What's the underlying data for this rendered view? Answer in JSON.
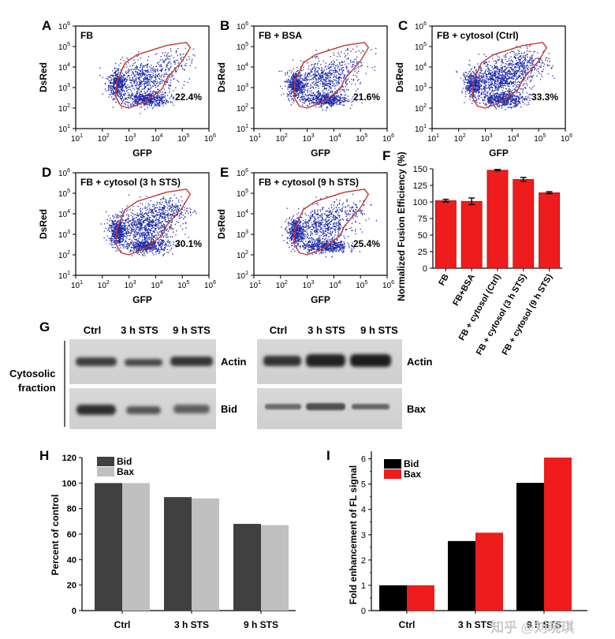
{
  "flow_panels": [
    {
      "letter": "A",
      "title": "FB",
      "percent": "22.4%"
    },
    {
      "letter": "B",
      "title": "FB + BSA",
      "percent": "21.6%"
    },
    {
      "letter": "C",
      "title": "FB + cytosol (Ctrl)",
      "percent": "33.3%"
    },
    {
      "letter": "D",
      "title": "FB + cytosol (3 h STS)",
      "percent": "30.1%"
    },
    {
      "letter": "E",
      "title": "FB + cytosol (9 h STS)",
      "percent": "25.4%"
    }
  ],
  "flow_axes": {
    "xlabel": "GFP",
    "ylabel": "DsRed",
    "ticks": [
      {
        "base": "10",
        "exp": "1"
      },
      {
        "base": "10",
        "exp": "2"
      },
      {
        "base": "10",
        "exp": "3"
      },
      {
        "base": "10",
        "exp": "4"
      },
      {
        "base": "10",
        "exp": "5"
      },
      {
        "base": "10",
        "exp": "6"
      }
    ]
  },
  "panel_g": {
    "letter": "G",
    "lanes": [
      "Ctrl",
      "3 h STS",
      "9 h STS"
    ],
    "fraction_label_line1": "Cytosolic",
    "fraction_label_line2": "fraction",
    "left_bands": [
      "Actin",
      "Bid"
    ],
    "right_bands": [
      "Actin",
      "Bax"
    ]
  },
  "watermark": "知乎 @刘晓琪",
  "colors": {
    "red": "#ee1c1c",
    "dark_grey": "#404040",
    "light_grey": "#c0c0c0",
    "black": "#000000",
    "gate": "#c0392b",
    "dots": "#1f2aa8"
  },
  "chart_data": [
    {
      "panel": "F",
      "type": "bar",
      "ylabel": "Normalized Fusion Efficiency (%)",
      "categories": [
        "FB",
        "FB+BSA",
        "FB + cytosol (Ctrl)",
        "FB + cytosol (3 h STS)",
        "FB + cytosol (9 h STS)"
      ],
      "values": [
        102,
        101,
        148,
        134,
        114
      ],
      "errors": [
        2,
        5,
        1,
        3,
        1.5
      ],
      "ylim": [
        0,
        150
      ],
      "yticks": [
        "0",
        "25",
        "50",
        "75",
        "100",
        "125",
        "150"
      ]
    },
    {
      "panel": "H",
      "type": "bar",
      "ylabel": "Percent of control",
      "categories": [
        "Ctrl",
        "3 h STS",
        "9 h STS"
      ],
      "series": [
        {
          "name": "Bid",
          "values": [
            100,
            89,
            68
          ]
        },
        {
          "name": "Bax",
          "values": [
            100,
            88,
            67
          ]
        }
      ],
      "ylim": [
        0,
        120
      ],
      "yticks": [
        "0",
        "20",
        "40",
        "60",
        "80",
        "100",
        "120"
      ]
    },
    {
      "panel": "I",
      "type": "bar",
      "ylabel": "Fold enhancement of FL signal",
      "categories": [
        "Ctrl",
        "3 h STS",
        "9 h STS"
      ],
      "series": [
        {
          "name": "Bid",
          "values": [
            1.0,
            2.75,
            5.05
          ]
        },
        {
          "name": "Bax",
          "values": [
            1.0,
            3.08,
            6.05
          ]
        }
      ],
      "ylim": [
        0,
        6.3
      ],
      "yticks": [
        "0",
        "1",
        "2",
        "3",
        "4",
        "5",
        "6"
      ]
    }
  ]
}
